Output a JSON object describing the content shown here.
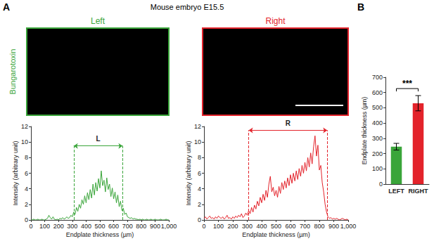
{
  "figure": {
    "panel_a": "A",
    "panel_b": "B",
    "title": "Mouse embryo E15.5",
    "stain": "Bungarotoxin",
    "images": [
      {
        "title": "Left",
        "color": "#3aa53a"
      },
      {
        "title": "Right",
        "color": "#e3232b"
      }
    ]
  },
  "chart_data": [
    {
      "type": "line",
      "color": "#3aa53a",
      "xlabel": "Endplate thickness (µm)",
      "ylabel": "Intensity (arbitrary unit)",
      "xlim": [
        0,
        1000
      ],
      "xticks": [
        0,
        100,
        200,
        300,
        400,
        500,
        600,
        700,
        800,
        900,
        1000
      ],
      "ylim": [
        0,
        12
      ],
      "yticks": [
        0,
        2,
        4,
        6,
        8,
        10,
        12
      ],
      "grid": false,
      "x": [
        0,
        10,
        20,
        30,
        40,
        50,
        60,
        70,
        80,
        90,
        100,
        110,
        120,
        130,
        140,
        150,
        160,
        170,
        180,
        190,
        200,
        210,
        220,
        230,
        240,
        250,
        260,
        270,
        280,
        290,
        300,
        310,
        320,
        330,
        340,
        350,
        360,
        370,
        380,
        390,
        400,
        410,
        420,
        430,
        440,
        450,
        460,
        470,
        480,
        490,
        500,
        510,
        520,
        530,
        540,
        550,
        560,
        570,
        580,
        590,
        600,
        610,
        620,
        630,
        640,
        650,
        660,
        670,
        680,
        690,
        700,
        710,
        720,
        730,
        740,
        750,
        760,
        770,
        780,
        790,
        800,
        810,
        820,
        830,
        840,
        850,
        860,
        870,
        880,
        890,
        900,
        910,
        920,
        930,
        940,
        950,
        960,
        970,
        980,
        990,
        1000
      ],
      "values": [
        0,
        0,
        0.1,
        0,
        0,
        0.1,
        0,
        0,
        0.1,
        0,
        0,
        0.1,
        0.2,
        0.6,
        0.3,
        0.1,
        0.4,
        0.1,
        0,
        0.1,
        0,
        0.2,
        0.1,
        0.3,
        0.1,
        0.2,
        0.4,
        0.2,
        0.3,
        0.6,
        0.4,
        1.0,
        0.7,
        1.6,
        1.1,
        2.0,
        1.5,
        2.6,
        2.0,
        3.1,
        2.2,
        3.5,
        2.6,
        3.9,
        2.8,
        4.6,
        3.2,
        4.8,
        3.7,
        5.3,
        4.1,
        6.3,
        4.4,
        5.1,
        3.6,
        5.4,
        3.9,
        4.6,
        3.0,
        4.1,
        2.7,
        3.6,
        2.2,
        3.2,
        1.7,
        2.4,
        1.2,
        1.5,
        0.7,
        0.9,
        0.4,
        0.3,
        0.2,
        0.3,
        0.1,
        0.2,
        0.1,
        0.1,
        0,
        0.1,
        0,
        0.1,
        0,
        0,
        0.1,
        0,
        0,
        0.1,
        0,
        0,
        0.1,
        0,
        0,
        0,
        0.1,
        0,
        0,
        0,
        0.1,
        0,
        0
      ],
      "annotations": [
        {
          "text": "L",
          "x": [
            310,
            665
          ],
          "y": 9.5
        }
      ]
    },
    {
      "type": "line",
      "color": "#e3232b",
      "xlabel": "Endplate thickness (µm)",
      "ylabel": "Intensity (arbitrary unit)",
      "xlim": [
        0,
        1000
      ],
      "xticks": [
        0,
        100,
        200,
        300,
        400,
        500,
        600,
        700,
        800,
        900,
        1000
      ],
      "ylim": [
        0,
        12
      ],
      "yticks": [
        0,
        2,
        4,
        6,
        8,
        10,
        12
      ],
      "grid": false,
      "x": [
        0,
        10,
        20,
        30,
        40,
        50,
        60,
        70,
        80,
        90,
        100,
        110,
        120,
        130,
        140,
        150,
        160,
        170,
        180,
        190,
        200,
        210,
        220,
        230,
        240,
        250,
        260,
        270,
        280,
        290,
        300,
        310,
        320,
        330,
        340,
        350,
        360,
        370,
        380,
        390,
        400,
        410,
        420,
        430,
        440,
        450,
        460,
        470,
        480,
        490,
        500,
        510,
        520,
        530,
        540,
        550,
        560,
        570,
        580,
        590,
        600,
        610,
        620,
        630,
        640,
        650,
        660,
        670,
        680,
        690,
        700,
        710,
        720,
        730,
        740,
        750,
        760,
        770,
        780,
        790,
        800,
        810,
        820,
        830,
        840,
        850,
        860,
        870,
        880,
        890,
        900,
        910,
        920,
        930,
        940,
        950,
        960,
        970,
        980,
        990,
        1000
      ],
      "values": [
        0.2,
        0.4,
        0.1,
        0.3,
        0.5,
        0.2,
        0.3,
        0.1,
        0.4,
        0.2,
        0.5,
        0.3,
        0.2,
        0.4,
        0.1,
        0.3,
        0.6,
        0.2,
        0.3,
        0.1,
        0.4,
        0.2,
        0.5,
        0.3,
        0.6,
        0.4,
        0.8,
        0.3,
        0.5,
        0.9,
        0.6,
        1.2,
        0.8,
        1.6,
        1.0,
        1.9,
        1.4,
        2.4,
        1.8,
        2.9,
        2.2,
        3.3,
        2.5,
        3.8,
        2.9,
        4.6,
        5.6,
        3.6,
        4.2,
        3.1,
        3.8,
        2.9,
        4.3,
        3.4,
        4.8,
        3.9,
        5.0,
        4.1,
        5.4,
        4.4,
        5.8,
        4.7,
        6.0,
        5.0,
        6.3,
        5.2,
        6.6,
        5.6,
        7.0,
        6.0,
        7.4,
        6.3,
        8.0,
        6.8,
        8.6,
        7.2,
        9.4,
        10.8,
        8.2,
        9.6,
        6.4,
        7.0,
        4.8,
        3.6,
        2.0,
        1.0,
        0.4,
        0.2,
        0.3,
        0.1,
        0.2,
        0.1,
        0.2,
        0.1,
        0,
        0.1,
        0.2,
        0.1,
        0,
        0.1,
        0
      ],
      "annotations": [
        {
          "text": "R",
          "x": [
            310,
            855
          ],
          "y": 11.5
        }
      ]
    },
    {
      "type": "bar",
      "ylabel": "Endplate thickness (µm)",
      "categories": [
        "LEFT",
        "RIGHT"
      ],
      "values": [
        245,
        530
      ],
      "errors": [
        22,
        50
      ],
      "colors": [
        "#3aa53a",
        "#e3232b"
      ],
      "ylim": [
        0,
        700
      ],
      "yticks": [
        0,
        100,
        200,
        300,
        400,
        500,
        600,
        700
      ],
      "grid": false,
      "significance": "***"
    }
  ]
}
